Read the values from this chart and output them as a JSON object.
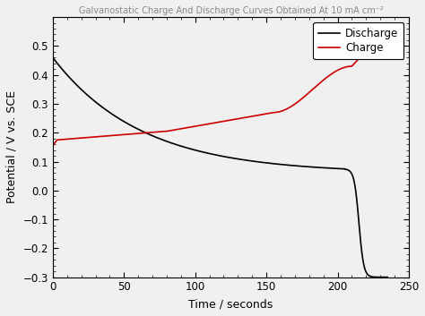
{
  "title": "Galvanostatic Charge And Discharge Curves Obtained At 10 mA cm⁻²",
  "xlabel": "Time / seconds",
  "ylabel": "Potential / V vs. SCE",
  "xlim": [
    0,
    250
  ],
  "ylim": [
    -0.3,
    0.6
  ],
  "yticks": [
    -0.3,
    -0.2,
    -0.1,
    0.0,
    0.1,
    0.2,
    0.3,
    0.4,
    0.5
  ],
  "xticks": [
    0,
    50,
    100,
    150,
    200,
    250
  ],
  "discharge_color": "#000000",
  "charge_color": "#cc0000",
  "legend_labels": [
    "Discharge",
    "Charge"
  ],
  "background_color": "#f0f0f0",
  "plot_bg_color": "#f0f0f0",
  "figsize": [
    4.74,
    3.53
  ],
  "dpi": 100
}
